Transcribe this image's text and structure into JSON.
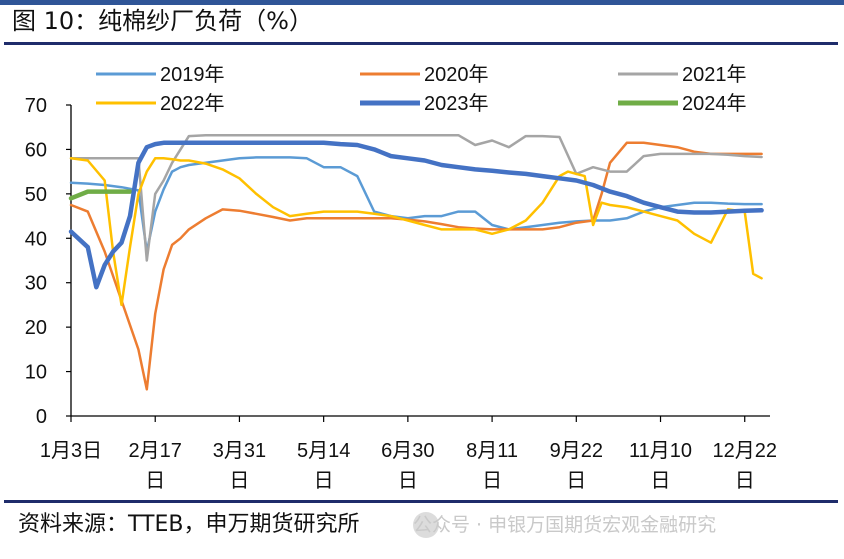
{
  "figure": {
    "title": "图 10：纯棉纱厂负荷（%）",
    "source": "资料来源：TTEB，申万期货研究所",
    "watermark": "公众号 · 申银万国期货宏观金融研究"
  },
  "chart_data": {
    "type": "line",
    "title": "",
    "xlabel": "",
    "ylabel": "",
    "ylim": [
      0,
      70
    ],
    "yticks": [
      0,
      10,
      20,
      30,
      40,
      50,
      60,
      70
    ],
    "x_ticks": [
      {
        "x": 1,
        "label": "1月3日"
      },
      {
        "x": 11,
        "label": "2月17日"
      },
      {
        "x": 21,
        "label": "3月31日"
      },
      {
        "x": 31,
        "label": "5月14日"
      },
      {
        "x": 41,
        "label": "6月30日"
      },
      {
        "x": 51,
        "label": "8月11日"
      },
      {
        "x": 61,
        "label": "9月22日"
      },
      {
        "x": 71,
        "label": "11月10日"
      },
      {
        "x": 81,
        "label": "12月22日"
      }
    ],
    "xlim": [
      1,
      84
    ],
    "grid": false,
    "legend": "top",
    "series": [
      {
        "name": "2019年",
        "color": "#5b9bd5",
        "width": 2.5,
        "x": [
          1,
          3,
          5,
          7,
          9,
          10,
          11,
          12,
          13,
          14,
          15,
          17,
          19,
          21,
          23,
          25,
          27,
          29,
          31,
          33,
          35,
          37,
          39,
          41,
          43,
          45,
          47,
          49,
          51,
          53,
          55,
          57,
          59,
          61,
          63,
          65,
          67,
          69,
          71,
          73,
          75,
          77,
          79,
          81,
          83
        ],
        "y": [
          52.5,
          52.3,
          52,
          51.5,
          50.8,
          37,
          46,
          51,
          55,
          56,
          56.5,
          57,
          57.5,
          58,
          58.2,
          58.2,
          58.2,
          58,
          56,
          56,
          54,
          46,
          45,
          44.5,
          45,
          45,
          46,
          46,
          43,
          42,
          42.5,
          43,
          43.5,
          43.8,
          44,
          44,
          44.5,
          46,
          47,
          47.5,
          48,
          48,
          47.8,
          47.7,
          47.7
        ]
      },
      {
        "name": "2020年",
        "color": "#ed7d31",
        "width": 2.5,
        "x": [
          1,
          3,
          5,
          7,
          9,
          10,
          11,
          12,
          13,
          14,
          15,
          17,
          19,
          21,
          23,
          25,
          27,
          29,
          31,
          33,
          35,
          37,
          39,
          41,
          43,
          45,
          47,
          49,
          51,
          53,
          55,
          57,
          59,
          61,
          63,
          64,
          65,
          67,
          69,
          71,
          73,
          75,
          77,
          79,
          81,
          83
        ],
        "y": [
          47.5,
          46,
          37,
          26,
          15,
          6,
          23,
          33,
          38.5,
          40,
          42,
          44.5,
          46.5,
          46.2,
          45.5,
          44.8,
          44,
          44.5,
          44.5,
          44.5,
          44.5,
          44.5,
          44.5,
          44.2,
          43.8,
          43.2,
          42.5,
          42.2,
          42,
          42,
          42,
          42,
          42.5,
          43.5,
          44,
          50,
          57,
          61.5,
          61.5,
          61,
          60.5,
          59.5,
          59,
          59,
          59,
          59
        ]
      },
      {
        "name": "2021年",
        "color": "#a5a5a5",
        "width": 2.5,
        "x": [
          1,
          3,
          5,
          7,
          9,
          10,
          11,
          12,
          13,
          14,
          15,
          17,
          19,
          21,
          23,
          25,
          27,
          29,
          31,
          33,
          35,
          37,
          39,
          41,
          43,
          45,
          47,
          49,
          51,
          53,
          55,
          57,
          59,
          61,
          63,
          65,
          67,
          69,
          71,
          73,
          75,
          77,
          79,
          81,
          83
        ],
        "y": [
          58,
          58,
          58,
          58,
          58,
          35,
          50,
          53,
          57,
          60,
          63,
          63.2,
          63.2,
          63.2,
          63.2,
          63.2,
          63.2,
          63.2,
          63.2,
          63.2,
          63.2,
          63.2,
          63.2,
          63.2,
          63.2,
          63.2,
          63.2,
          61,
          62,
          60.5,
          63,
          63,
          62.8,
          54.5,
          56,
          55,
          55,
          58.5,
          59,
          59,
          59,
          59,
          58.8,
          58.5,
          58.3
        ]
      },
      {
        "name": "2022年",
        "color": "#ffc000",
        "width": 2.5,
        "x": [
          1,
          3,
          5,
          6,
          7,
          8,
          9,
          10,
          11,
          12,
          13,
          14,
          15,
          17,
          19,
          21,
          23,
          25,
          27,
          29,
          31,
          33,
          35,
          37,
          39,
          41,
          43,
          45,
          47,
          49,
          51,
          53,
          55,
          57,
          59,
          60,
          61,
          62,
          63,
          64,
          65,
          67,
          69,
          71,
          73,
          75,
          77,
          79,
          81,
          82,
          83
        ],
        "y": [
          58,
          57.5,
          53,
          37,
          25,
          38,
          50,
          55,
          58,
          58,
          57.8,
          57.5,
          57.5,
          56.8,
          55.5,
          53.5,
          50,
          47,
          45,
          45.5,
          46,
          46,
          46,
          45.5,
          45,
          44,
          43,
          42,
          42,
          42,
          41,
          42,
          44,
          48,
          54,
          55,
          54.5,
          54,
          43,
          48,
          47.5,
          47,
          46,
          45,
          44,
          41,
          39,
          46.5,
          46,
          32,
          31
        ]
      },
      {
        "name": "2023年",
        "color": "#4472c4",
        "width": 4.5,
        "x": [
          1,
          3,
          4,
          5,
          6,
          7,
          8,
          9,
          10,
          11,
          12,
          13,
          14,
          15,
          17,
          19,
          21,
          23,
          25,
          27,
          29,
          31,
          33,
          35,
          37,
          39,
          41,
          43,
          45,
          47,
          49,
          51,
          53,
          55,
          57,
          59,
          61,
          63,
          65,
          67,
          69,
          71,
          73,
          75,
          77,
          79,
          81,
          83
        ],
        "y": [
          41.5,
          38,
          29,
          34,
          37,
          39,
          45,
          57,
          60.5,
          61.2,
          61.5,
          61.5,
          61.5,
          61.5,
          61.5,
          61.5,
          61.5,
          61.5,
          61.5,
          61.5,
          61.5,
          61.5,
          61.2,
          61,
          60,
          58.5,
          58,
          57.5,
          56.5,
          56,
          55.5,
          55.2,
          54.8,
          54.5,
          54,
          53.5,
          53,
          52,
          50.5,
          49.5,
          48,
          47,
          46,
          45.8,
          45.8,
          46,
          46.2,
          46.3
        ]
      },
      {
        "name": "2024年",
        "color": "#70ad47",
        "width": 4.5,
        "x": [
          1,
          3,
          5,
          7,
          8
        ],
        "y": [
          49,
          50.5,
          50.5,
          50.5,
          50.5
        ]
      }
    ]
  }
}
